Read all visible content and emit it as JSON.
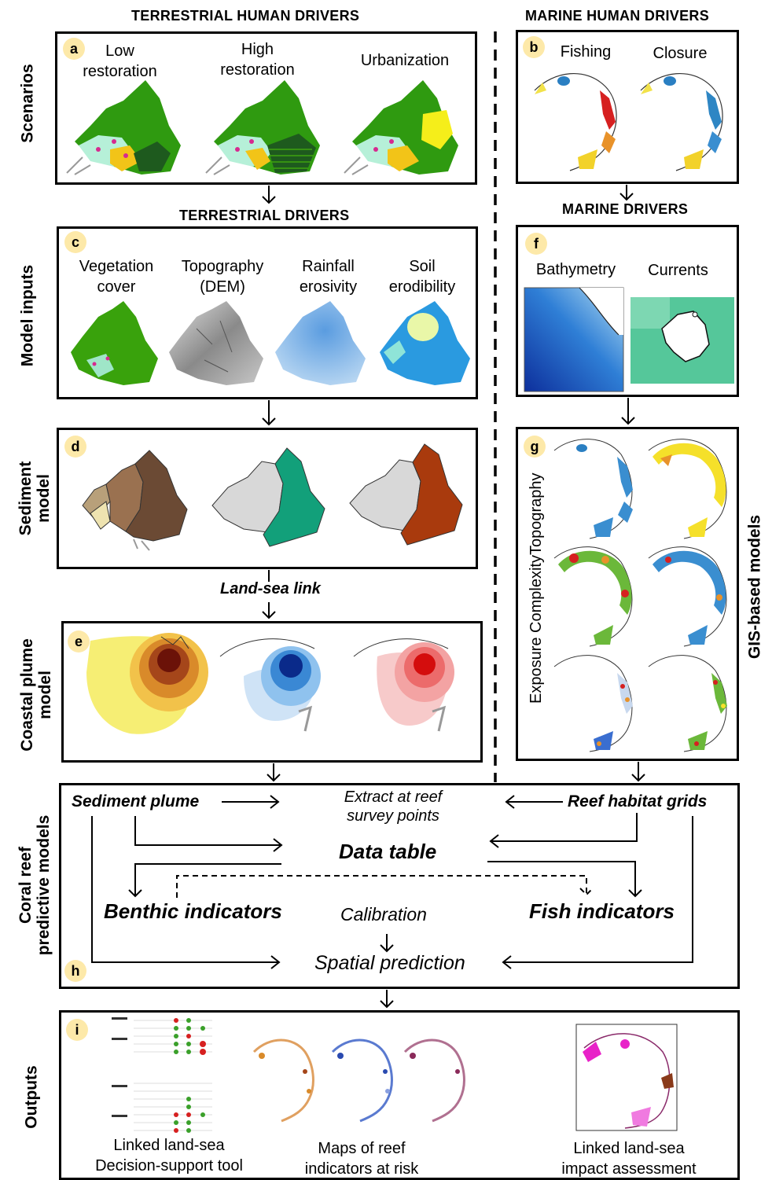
{
  "headers": {
    "terrestrial_human": "TERRESTRIAL HUMAN DRIVERS",
    "marine_human": "MARINE HUMAN DRIVERS",
    "terrestrial_drivers": "TERRESTRIAL DRIVERS",
    "marine_drivers": "MARINE DRIVERS"
  },
  "row_labels": {
    "scenarios": "Scenarios",
    "model_inputs": "Model inputs",
    "sediment_model_1": "Sediment",
    "sediment_model_2": "model",
    "coastal_plume_1": "Coastal plume",
    "coastal_plume_2": "model",
    "coral_reef_1": "Coral reef",
    "coral_reef_2": "predictive models",
    "outputs": "Outputs",
    "gis_models": "GIS-based models"
  },
  "panel_a": {
    "badge": "a",
    "low_1": "Low",
    "low_2": "restoration",
    "high_1": "High",
    "high_2": "restoration",
    "urban": "Urbanization"
  },
  "panel_b": {
    "badge": "b",
    "fishing": "Fishing",
    "closure": "Closure"
  },
  "panel_c": {
    "badge": "c",
    "veg_1": "Vegetation",
    "veg_2": "cover",
    "topo_1": "Topography",
    "topo_2": "(DEM)",
    "rain_1": "Rainfall",
    "rain_2": "erosivity",
    "soil_1": "Soil",
    "soil_2": "erodibility"
  },
  "panel_d": {
    "badge": "d"
  },
  "link_label": "Land-sea link",
  "panel_e": {
    "badge": "e"
  },
  "panel_f": {
    "badge": "f",
    "bathy": "Bathymetry",
    "currents": "Currents"
  },
  "panel_g": {
    "badge": "g",
    "vertical": "Exposure ComplexityTopography"
  },
  "panel_h": {
    "badge": "h",
    "sediment_plume": "Sediment plume",
    "extract_1": "Extract at reef",
    "extract_2": "survey points",
    "reef_grids": "Reef habitat grids",
    "data_table": "Data table",
    "benthic": "Benthic indicators",
    "calibration": "Calibration",
    "fish": "Fish indicators",
    "spatial": "Spatial prediction"
  },
  "panel_i": {
    "badge": "i",
    "tool_1": "Linked land-sea",
    "tool_2": "Decision-support tool",
    "maps_1": "Maps of reef",
    "maps_2": "indicators at risk",
    "impact_1": "Linked land-sea",
    "impact_2": "impact assessment"
  },
  "colors": {
    "badge_fill": "#fde9a9",
    "forest_green": "#3fa30e",
    "teal_sediment": "#12a07a",
    "rust_sediment": "#a93a0d",
    "plume_blue": "#0a2a8a",
    "plume_red": "#d40d0d",
    "ocean_blue": "#1e6fd0",
    "current_green": "#57c99a"
  }
}
